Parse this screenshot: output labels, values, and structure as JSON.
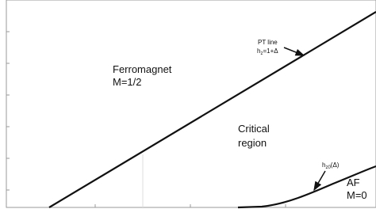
{
  "regions": [
    {
      "lines": [
        "Ferromagnet",
        "M=1/2"
      ]
    },
    {
      "lines": [
        "Critical",
        "region"
      ]
    },
    {
      "lines": [
        "AF",
        "M=0"
      ]
    }
  ],
  "pt_line": {
    "title": "PT line",
    "formula": {
      "base": "h",
      "sub": "z",
      "rest": "=1+Δ"
    }
  },
  "curve": {
    "base": "h",
    "sub": "z0",
    "rest": "(Δ)"
  }
}
